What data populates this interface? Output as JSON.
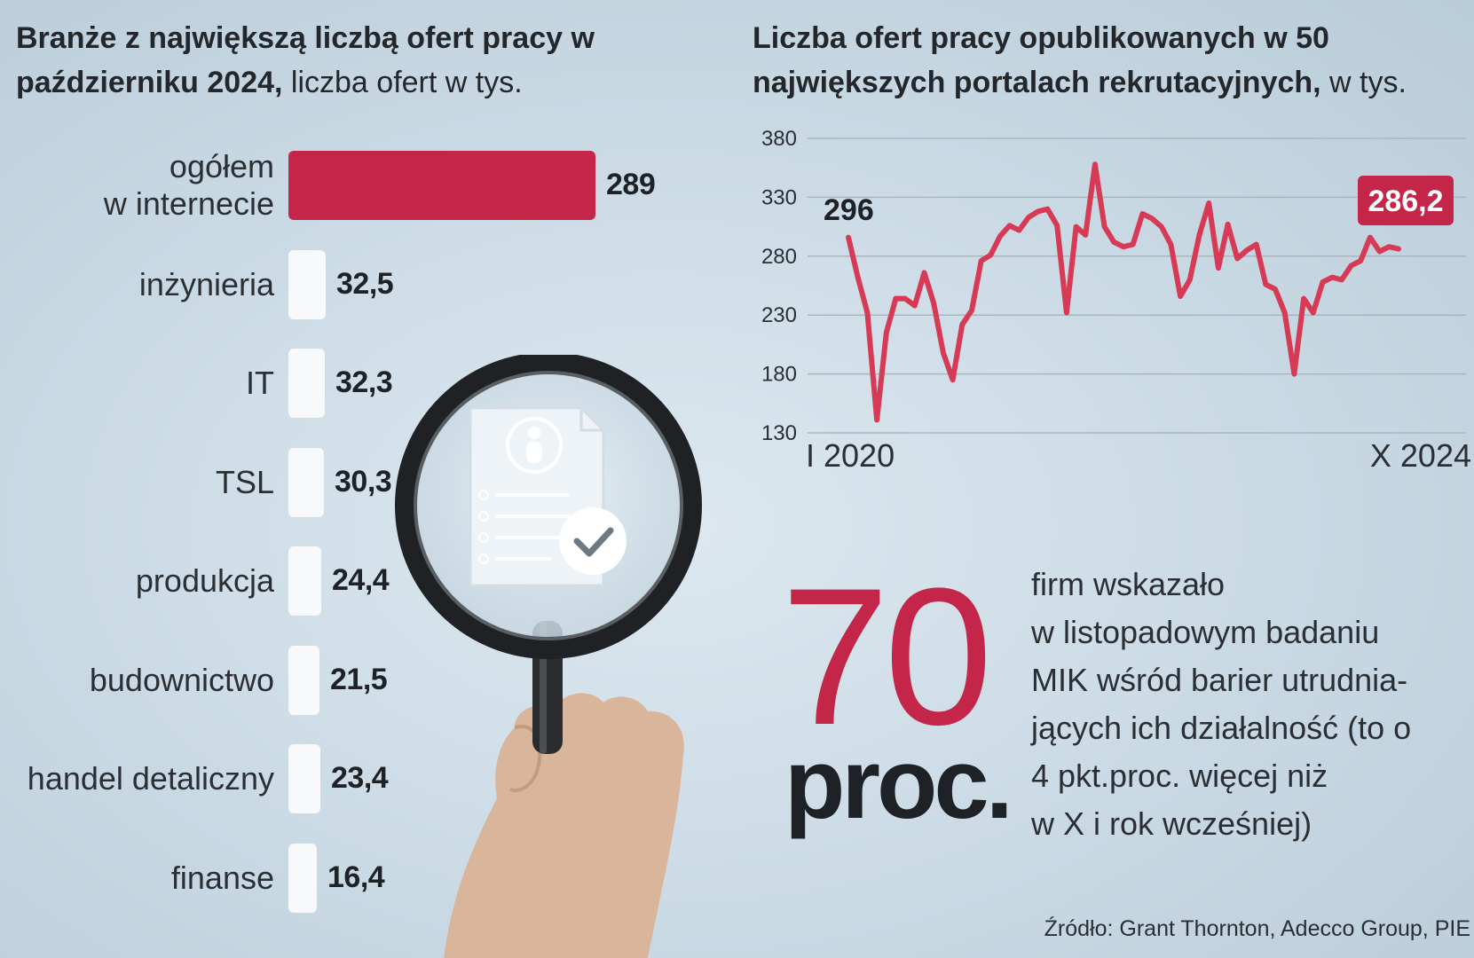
{
  "left_title": {
    "bold": "Branże z największą liczbą ofert pracy w październiku 2024,",
    "light": " liczba ofert w tys."
  },
  "right_title": {
    "bold": "Liczba ofert pracy opublikowanych w 50 największych  portalach rekrutacyjnych,",
    "light": " w tys."
  },
  "chart_data": [
    {
      "type": "bar",
      "orientation": "horizontal",
      "categories": [
        "ogółem\nw internecie",
        "inżynieria",
        "IT",
        "TSL",
        "produkcja",
        "budownictwo",
        "handel detaliczny",
        "finanse"
      ],
      "values": [
        289,
        32.5,
        32.3,
        30.3,
        24.4,
        21.5,
        23.4,
        16.4
      ],
      "value_labels": [
        "289",
        "32,5",
        "32,3",
        "30,3",
        "24,4",
        "21,5",
        "23,4",
        "16,4"
      ],
      "colors": [
        "#c4264a",
        "#f7f9fb",
        "#f7f9fb",
        "#f7f9fb",
        "#f7f9fb",
        "#f7f9fb",
        "#f7f9fb",
        "#f7f9fb"
      ]
    },
    {
      "type": "line",
      "x_start_label": "I 2020",
      "x_end_label": "X 2024",
      "y_ticks": [
        "380",
        "330",
        "280",
        "230",
        "180",
        "130"
      ],
      "ylim": [
        130,
        380
      ],
      "grid": true,
      "color": "#d63a55",
      "start_annotation": "296",
      "end_annotation": "286,2",
      "series": [
        {
          "values": [
            296,
            262,
            232,
            141,
            215,
            244,
            244,
            238,
            266,
            240,
            198,
            175,
            222,
            234,
            276,
            281,
            297,
            306,
            302,
            313,
            318,
            320,
            306,
            232,
            305,
            298,
            358,
            305,
            292,
            288,
            290,
            316,
            312,
            305,
            290,
            246,
            260,
            298,
            325,
            270,
            307,
            278,
            285,
            290,
            256,
            252,
            232,
            180,
            244,
            232,
            258,
            262,
            260,
            272,
            276,
            296,
            284,
            288,
            286.2
          ]
        }
      ]
    }
  ],
  "stat": {
    "number": "70",
    "unit": "proc.",
    "text": "firm wskazało\nw listopadowym badaniu\nMIK wśród barier utrudnia-\njących ich działalność (to o\n4 pkt.proc. więcej niż\nw X i rok wcześniej)"
  },
  "source": "Źródło: Grant Thornton, Adecco Group, PIE"
}
